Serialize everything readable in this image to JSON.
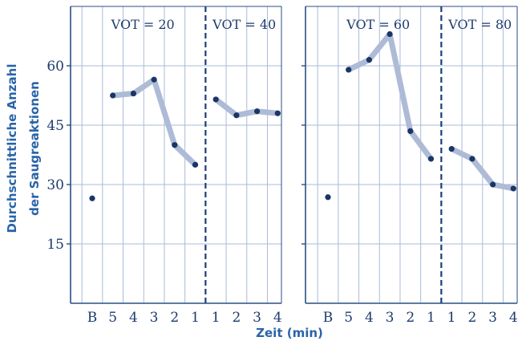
{
  "chart_data": {
    "type": "line",
    "ylabel": "Durchschnittliche Anzahl der Saugreaktionen",
    "xlabel": "Zeit (min)",
    "ylim": [
      0,
      75
    ],
    "yticks": [
      15,
      30,
      45,
      60
    ],
    "categories": [
      "B",
      "5",
      "4",
      "3",
      "2",
      "1",
      "1",
      "2",
      "3",
      "4"
    ],
    "grid": true,
    "colors": {
      "line": "#aebbd6",
      "point": "#1a3566",
      "grid": "#aabbd8",
      "axis": "#2a4e86",
      "divider": "#1a3f7a"
    },
    "panels": [
      {
        "annotations": [
          "VOT = 20",
          "VOT = 40"
        ],
        "baseline": 26.5,
        "segment_a": [
          52.5,
          53,
          56.5,
          40,
          35
        ],
        "segment_b": [
          51.5,
          47.5,
          48.5,
          48
        ]
      },
      {
        "annotations": [
          "VOT = 60",
          "VOT = 80"
        ],
        "baseline": 26.8,
        "segment_a": [
          59,
          61.5,
          68,
          43.5,
          36.5
        ],
        "segment_b": [
          39,
          36.5,
          30,
          29
        ]
      }
    ]
  }
}
